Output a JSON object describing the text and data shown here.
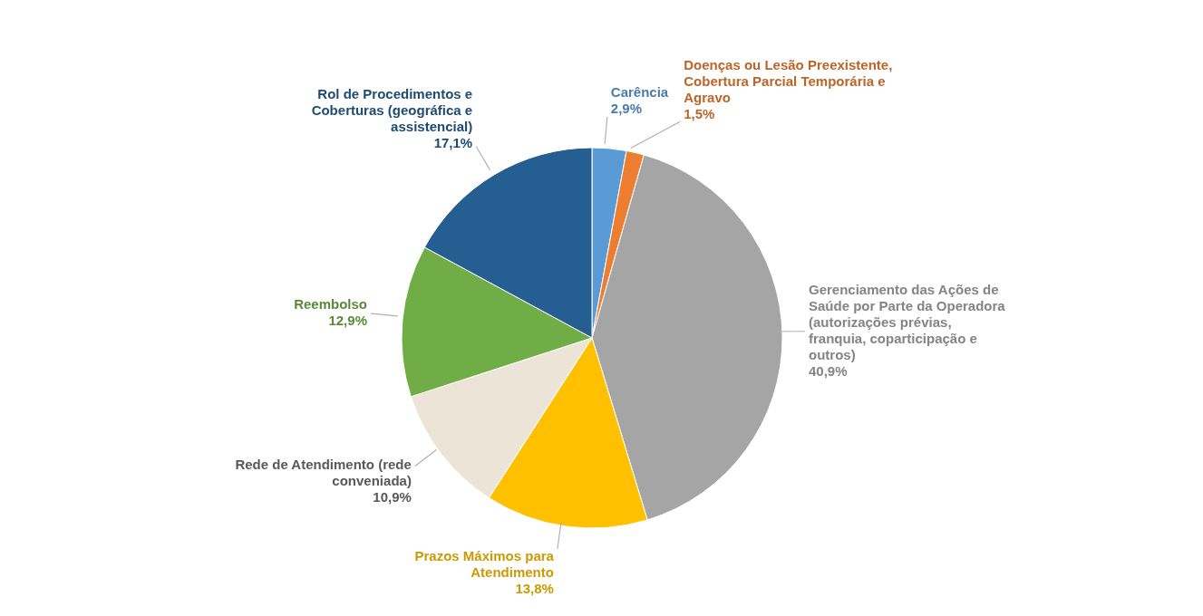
{
  "chart_data": {
    "type": "pie",
    "categories": [
      "Carência",
      "Doenças ou Lesão Preexistente, Cobertura Parcial Temporária e Agravo",
      "Gerenciamento das Ações de Saúde por Parte da Operadora (autorizações prévias, franquia, coparticipação e outros)",
      "Prazos Máximos para Atendimento",
      "Rede de Atendimento (rede conveniada)",
      "Reembolso",
      "Rol de Procedimentos e Coberturas (geográfica e assistencial)"
    ],
    "values": [
      2.9,
      1.5,
      40.9,
      13.8,
      10.9,
      12.9,
      17.1
    ],
    "colors": [
      "#5b9bd5",
      "#ed7d31",
      "#a5a5a5",
      "#ffc000",
      "#ede4d8",
      "#70ad47",
      "#255e91"
    ],
    "value_labels": [
      "2,9%",
      "1,5%",
      "40,9%",
      "13,8%",
      "10,9%",
      "12,9%",
      "17,1%"
    ]
  }
}
